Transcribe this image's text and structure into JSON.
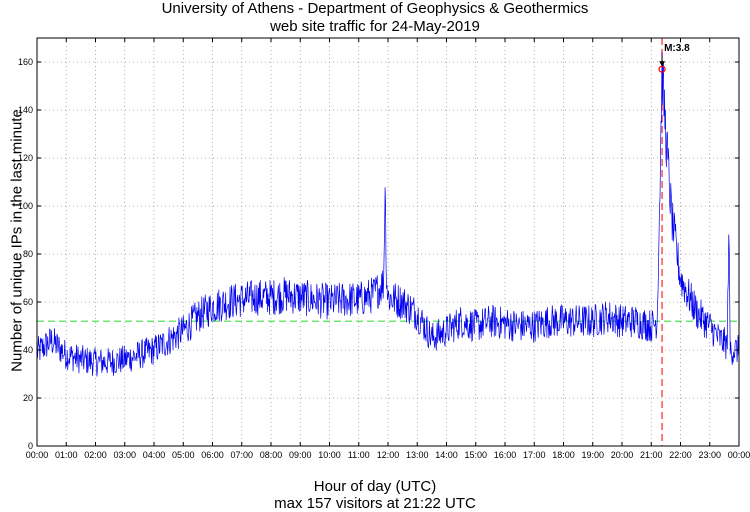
{
  "chart_data": {
    "type": "line",
    "title": "University of Athens - Department of Geophysics & Geothermics",
    "subtitle": "web site traffic for 24-May-2019",
    "xlabel": "Hour of day (UTC)",
    "ylabel": "Number of unique IPs in the last minute",
    "footer": "max 157 visitors at 21:22 UTC",
    "x_ticks": [
      "00:00",
      "01:00",
      "02:00",
      "03:00",
      "04:00",
      "05:00",
      "06:00",
      "07:00",
      "08:00",
      "09:00",
      "10:00",
      "11:00",
      "12:00",
      "13:00",
      "14:00",
      "15:00",
      "16:00",
      "17:00",
      "18:00",
      "19:00",
      "20:00",
      "21:00",
      "22:00",
      "23:00",
      "00:00"
    ],
    "y_ticks": [
      0,
      20,
      40,
      60,
      80,
      100,
      120,
      140,
      160
    ],
    "xlim": [
      0,
      24
    ],
    "ylim": [
      0,
      170
    ],
    "grid": true,
    "average": 52,
    "series": [
      {
        "x": [
          0,
          0.5,
          1,
          1.5,
          2,
          2.5,
          3,
          3.5,
          4,
          4.5,
          5,
          5.5,
          6,
          6.5,
          7,
          7.5,
          8,
          8.5,
          9,
          9.5,
          10,
          10.5,
          11,
          11.5,
          11.85,
          11.9,
          11.95,
          12,
          12.5,
          13,
          13.5,
          14,
          14.5,
          15,
          15.5,
          16,
          16.5,
          17,
          17.5,
          18,
          18.5,
          19,
          19.5,
          20,
          20.5,
          21,
          21.2,
          21.3,
          21.37,
          21.5,
          21.7,
          22,
          22.3,
          22.6,
          23,
          23.3,
          23.6,
          23.65,
          23.7,
          24
        ],
        "y": [
          39,
          44,
          38,
          36,
          35,
          35,
          36,
          38,
          40,
          44,
          48,
          54,
          58,
          60,
          61,
          62,
          62,
          63,
          62,
          61,
          60,
          61,
          61,
          63,
          68,
          110,
          70,
          62,
          60,
          55,
          45,
          48,
          52,
          50,
          52,
          51,
          50,
          50,
          52,
          52,
          52,
          52,
          54,
          52,
          52,
          50,
          52,
          110,
          157,
          130,
          95,
          70,
          62,
          55,
          50,
          45,
          42,
          92,
          40,
          40
        ]
      }
    ],
    "marker": {
      "x": 21.37,
      "y": 157,
      "label": "M:3.8"
    },
    "colors": {
      "series": "#0000ee",
      "average": "#44dd44",
      "event_line": "#ff4444",
      "marker": "#ff0000"
    }
  }
}
